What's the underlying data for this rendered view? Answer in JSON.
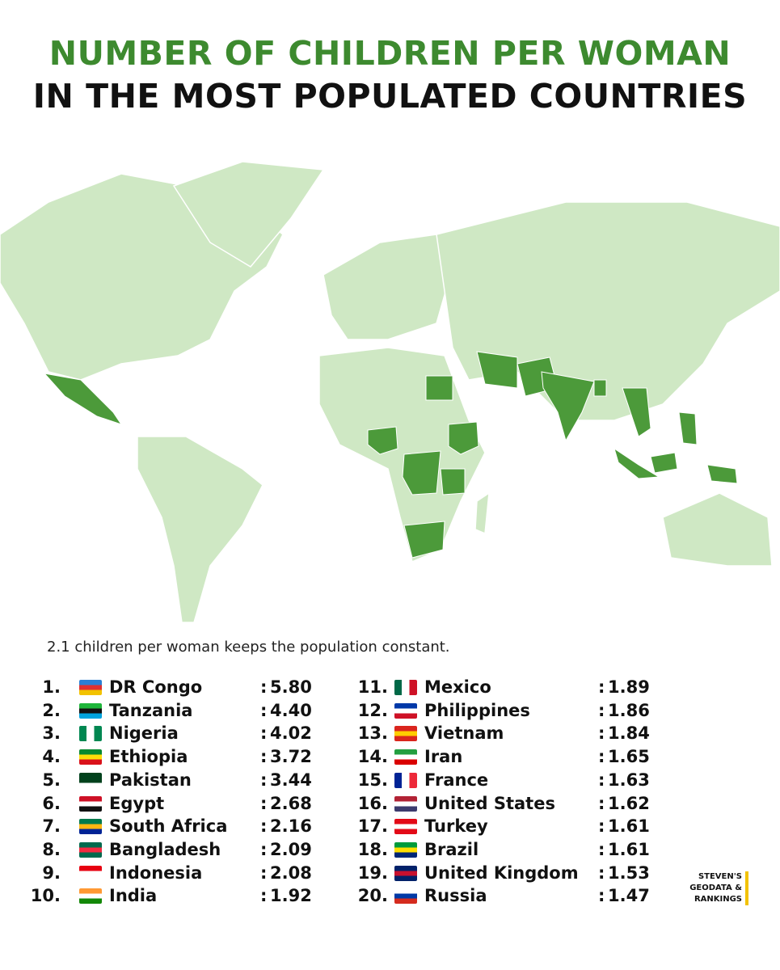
{
  "header": {
    "title_line1": "NUMBER OF CHILDREN PER WOMAN",
    "title_line2": "IN THE MOST POPULATED COUNTRIES"
  },
  "note": "2.1 children per woman keeps the population constant.",
  "separator": ":",
  "ranking": [
    {
      "rank": "1.",
      "country": "DR Congo",
      "value": "5.80"
    },
    {
      "rank": "2.",
      "country": "Tanzania",
      "value": "4.40"
    },
    {
      "rank": "3.",
      "country": "Nigeria",
      "value": "4.02"
    },
    {
      "rank": "4.",
      "country": "Ethiopia",
      "value": "3.72"
    },
    {
      "rank": "5.",
      "country": "Pakistan",
      "value": "3.44"
    },
    {
      "rank": "6.",
      "country": "Egypt",
      "value": "2.68"
    },
    {
      "rank": "7.",
      "country": "South Africa",
      "value": "2.16"
    },
    {
      "rank": "8.",
      "country": "Bangladesh",
      "value": "2.09"
    },
    {
      "rank": "9.",
      "country": "Indonesia",
      "value": "2.08"
    },
    {
      "rank": "10.",
      "country": "India",
      "value": "1.92"
    },
    {
      "rank": "11.",
      "country": "Mexico",
      "value": "1.89"
    },
    {
      "rank": "12.",
      "country": "Philippines",
      "value": "1.86"
    },
    {
      "rank": "13.",
      "country": "Vietnam",
      "value": "1.84"
    },
    {
      "rank": "14.",
      "country": "Iran",
      "value": "1.65"
    },
    {
      "rank": "15.",
      "country": "France",
      "value": "1.63"
    },
    {
      "rank": "16.",
      "country": "United States",
      "value": "1.62"
    },
    {
      "rank": "17.",
      "country": "Turkey",
      "value": "1.61"
    },
    {
      "rank": "18.",
      "country": "Brazil",
      "value": "1.61"
    },
    {
      "rank": "19.",
      "country": "United Kingdom",
      "value": "1.53"
    },
    {
      "rank": "20.",
      "country": "Russia",
      "value": "1.47"
    }
  ],
  "logo": {
    "line1": "STEVEN'S",
    "line2": "GEODATA &",
    "line3": "RANKINGS"
  }
}
